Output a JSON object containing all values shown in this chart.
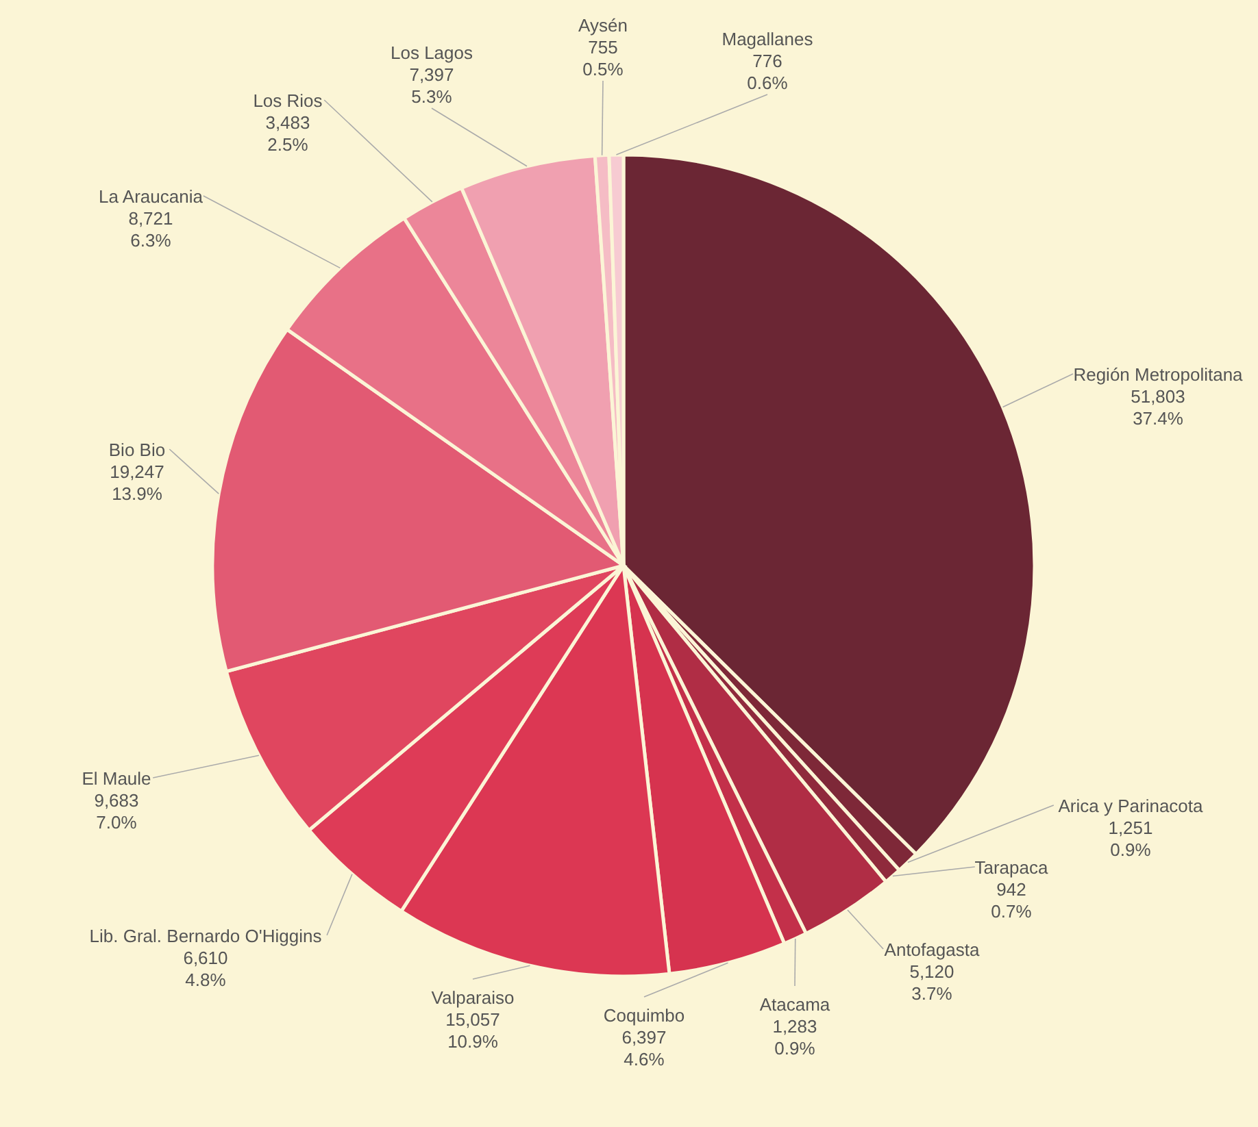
{
  "chart_data": {
    "type": "pie",
    "categories": [
      "Región Metropolitana",
      "Arica y Parinacota",
      "Tarapaca",
      "Antofagasta",
      "Atacama",
      "Coquimbo",
      "Valparaiso",
      "Lib. Gral. Bernardo O'Higgins",
      "El Maule",
      "Bio Bio",
      "La Araucania",
      "Los Rios",
      "Los Lagos",
      "Aysén",
      "Magallanes"
    ],
    "values": [
      51803,
      1251,
      942,
      5120,
      1283,
      6397,
      15057,
      6610,
      9683,
      19247,
      8721,
      3483,
      7397,
      755,
      776
    ],
    "value_labels": [
      "51,803\n37.4%",
      "1,251\n0.9%",
      "942\n0.7%",
      "5,120\n3.7%",
      "1,283\n0.9%",
      "6,397\n4.6%",
      "15,057\n10.9%",
      "6,610\n4.8%",
      "9,683\n7.0%",
      "19,247\n13.9%",
      "8,721\n6.3%",
      "3,483\n2.5%",
      "7,397\n5.3%",
      "755\n0.5%",
      "776\n0.6%"
    ],
    "colors": [
      "#6b2634",
      "#7e2838",
      "#8f2a3c",
      "#b02d45",
      "#c3304a",
      "#d6334f",
      "#dc3753",
      "#de3b57",
      "#e0465f",
      "#e25a73",
      "#e87187",
      "#ec8699",
      "#f0a0b0",
      "#f5bcc5",
      "#f7cbd2"
    ]
  }
}
